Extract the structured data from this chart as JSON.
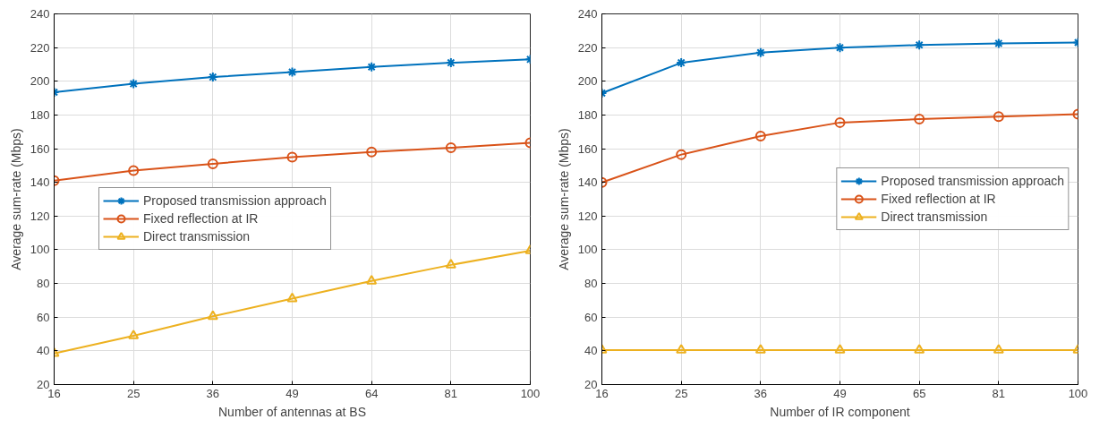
{
  "chart_data": [
    {
      "type": "line",
      "xlabel": "Number of antennas at BS",
      "ylabel": "Average sum-rate (Mbps)",
      "categories": [
        "16",
        "25",
        "36",
        "49",
        "64",
        "81",
        "100"
      ],
      "ylim": [
        20,
        240
      ],
      "yticks": [
        20,
        40,
        60,
        80,
        100,
        120,
        140,
        160,
        180,
        200,
        220,
        240
      ],
      "grid": true,
      "legend": "left",
      "series": [
        {
          "name": "Proposed transmission approach",
          "color": "#0072bd",
          "marker": "cross",
          "values": [
            193.5,
            198.5,
            202.5,
            205.5,
            208.5,
            211,
            213
          ]
        },
        {
          "name": "Fixed reflection at IR",
          "color": "#d95319",
          "marker": "circle",
          "values": [
            141,
            147,
            151,
            155,
            158,
            160.5,
            163.5
          ]
        },
        {
          "name": "Direct transmission",
          "color": "#edb120",
          "marker": "triangle",
          "values": [
            38.5,
            49,
            60.5,
            71,
            81.5,
            91,
            99.5
          ]
        }
      ]
    },
    {
      "type": "line",
      "xlabel": "Number of IR component",
      "ylabel": "Average sum-rate (Mbps)",
      "categories": [
        "16",
        "25",
        "36",
        "49",
        "65",
        "81",
        "100"
      ],
      "ylim": [
        20,
        240
      ],
      "yticks": [
        20,
        40,
        60,
        80,
        100,
        120,
        140,
        160,
        180,
        200,
        220,
        240
      ],
      "grid": true,
      "legend": "right",
      "series": [
        {
          "name": "Proposed transmission approach",
          "color": "#0072bd",
          "marker": "cross",
          "values": [
            193,
            211,
            217,
            220,
            221.5,
            222.5,
            223
          ]
        },
        {
          "name": "Fixed reflection at IR",
          "color": "#d95319",
          "marker": "circle",
          "values": [
            140,
            156.5,
            167.5,
            175.5,
            177.5,
            179,
            180.5
          ]
        },
        {
          "name": "Direct transmission",
          "color": "#edb120",
          "marker": "triangle",
          "values": [
            40.5,
            40.5,
            40.5,
            40.5,
            40.5,
            40.5,
            40.5
          ]
        }
      ]
    }
  ]
}
